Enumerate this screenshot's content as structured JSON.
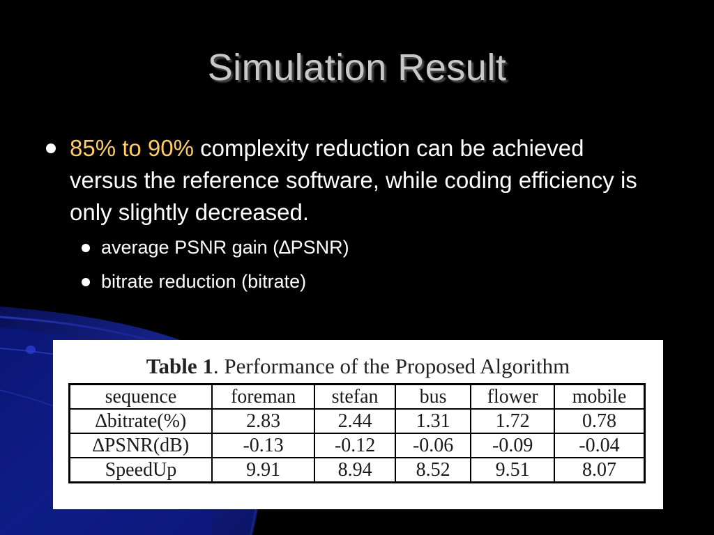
{
  "slide": {
    "title": "Simulation Result",
    "bullet1": {
      "highlight": "85% to 90%",
      "text": " complexity reduction can be achieved versus the reference software, while coding efficiency is only slightly decreased."
    },
    "subbullets": [
      "average PSNR gain (∆PSNR)",
      "bitrate reduction (bitrate)"
    ],
    "colors": {
      "background": "#000000",
      "title": "#c8c8c8",
      "highlight": "#ffcc66",
      "swoosh": "#1a2aa0"
    }
  },
  "table": {
    "caption_label": "Table 1",
    "caption_text": ". Performance of the Proposed Algorithm",
    "headers": [
      "sequence",
      "foreman",
      "stefan",
      "bus",
      "flower",
      "mobile"
    ],
    "rows": [
      [
        "∆bitrate(%)",
        "2.83",
        "2.44",
        "1.31",
        "1.72",
        "0.78"
      ],
      [
        "∆PSNR(dB)",
        "-0.13",
        "-0.12",
        "-0.06",
        "-0.09",
        "-0.04"
      ],
      [
        "SpeedUp",
        "9.91",
        "8.94",
        "8.52",
        "9.51",
        "8.07"
      ]
    ]
  }
}
